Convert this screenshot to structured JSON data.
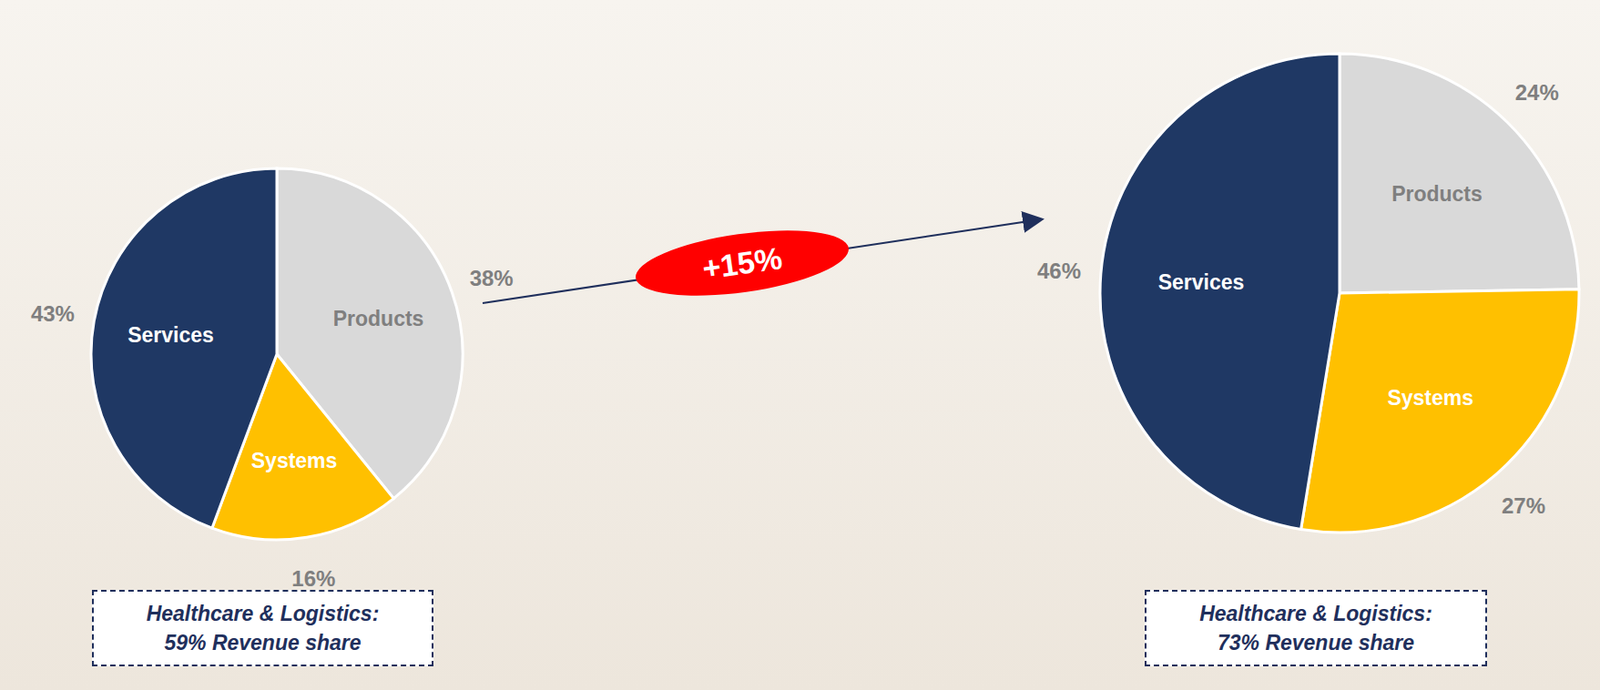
{
  "chart_data": [
    {
      "type": "pie",
      "categories": [
        "Products",
        "Systems",
        "Services"
      ],
      "values": [
        38,
        16,
        43
      ],
      "value_labels": [
        "38%",
        "16%",
        "43%"
      ],
      "colors": [
        "#d9d9d9",
        "#ffc000",
        "#1f3864"
      ],
      "data_labels": true,
      "annotation": "Healthcare & Logistics: 59% Revenue share"
    },
    {
      "type": "pie",
      "categories": [
        "Products",
        "Systems",
        "Services"
      ],
      "values": [
        24,
        27,
        46
      ],
      "value_labels": [
        "24%",
        "27%",
        "46%"
      ],
      "colors": [
        "#d9d9d9",
        "#ffc000",
        "#1f3864"
      ],
      "data_labels": true,
      "annotation": "Healthcare & Logistics: 73% Revenue share"
    }
  ],
  "annotation": "+15%"
}
